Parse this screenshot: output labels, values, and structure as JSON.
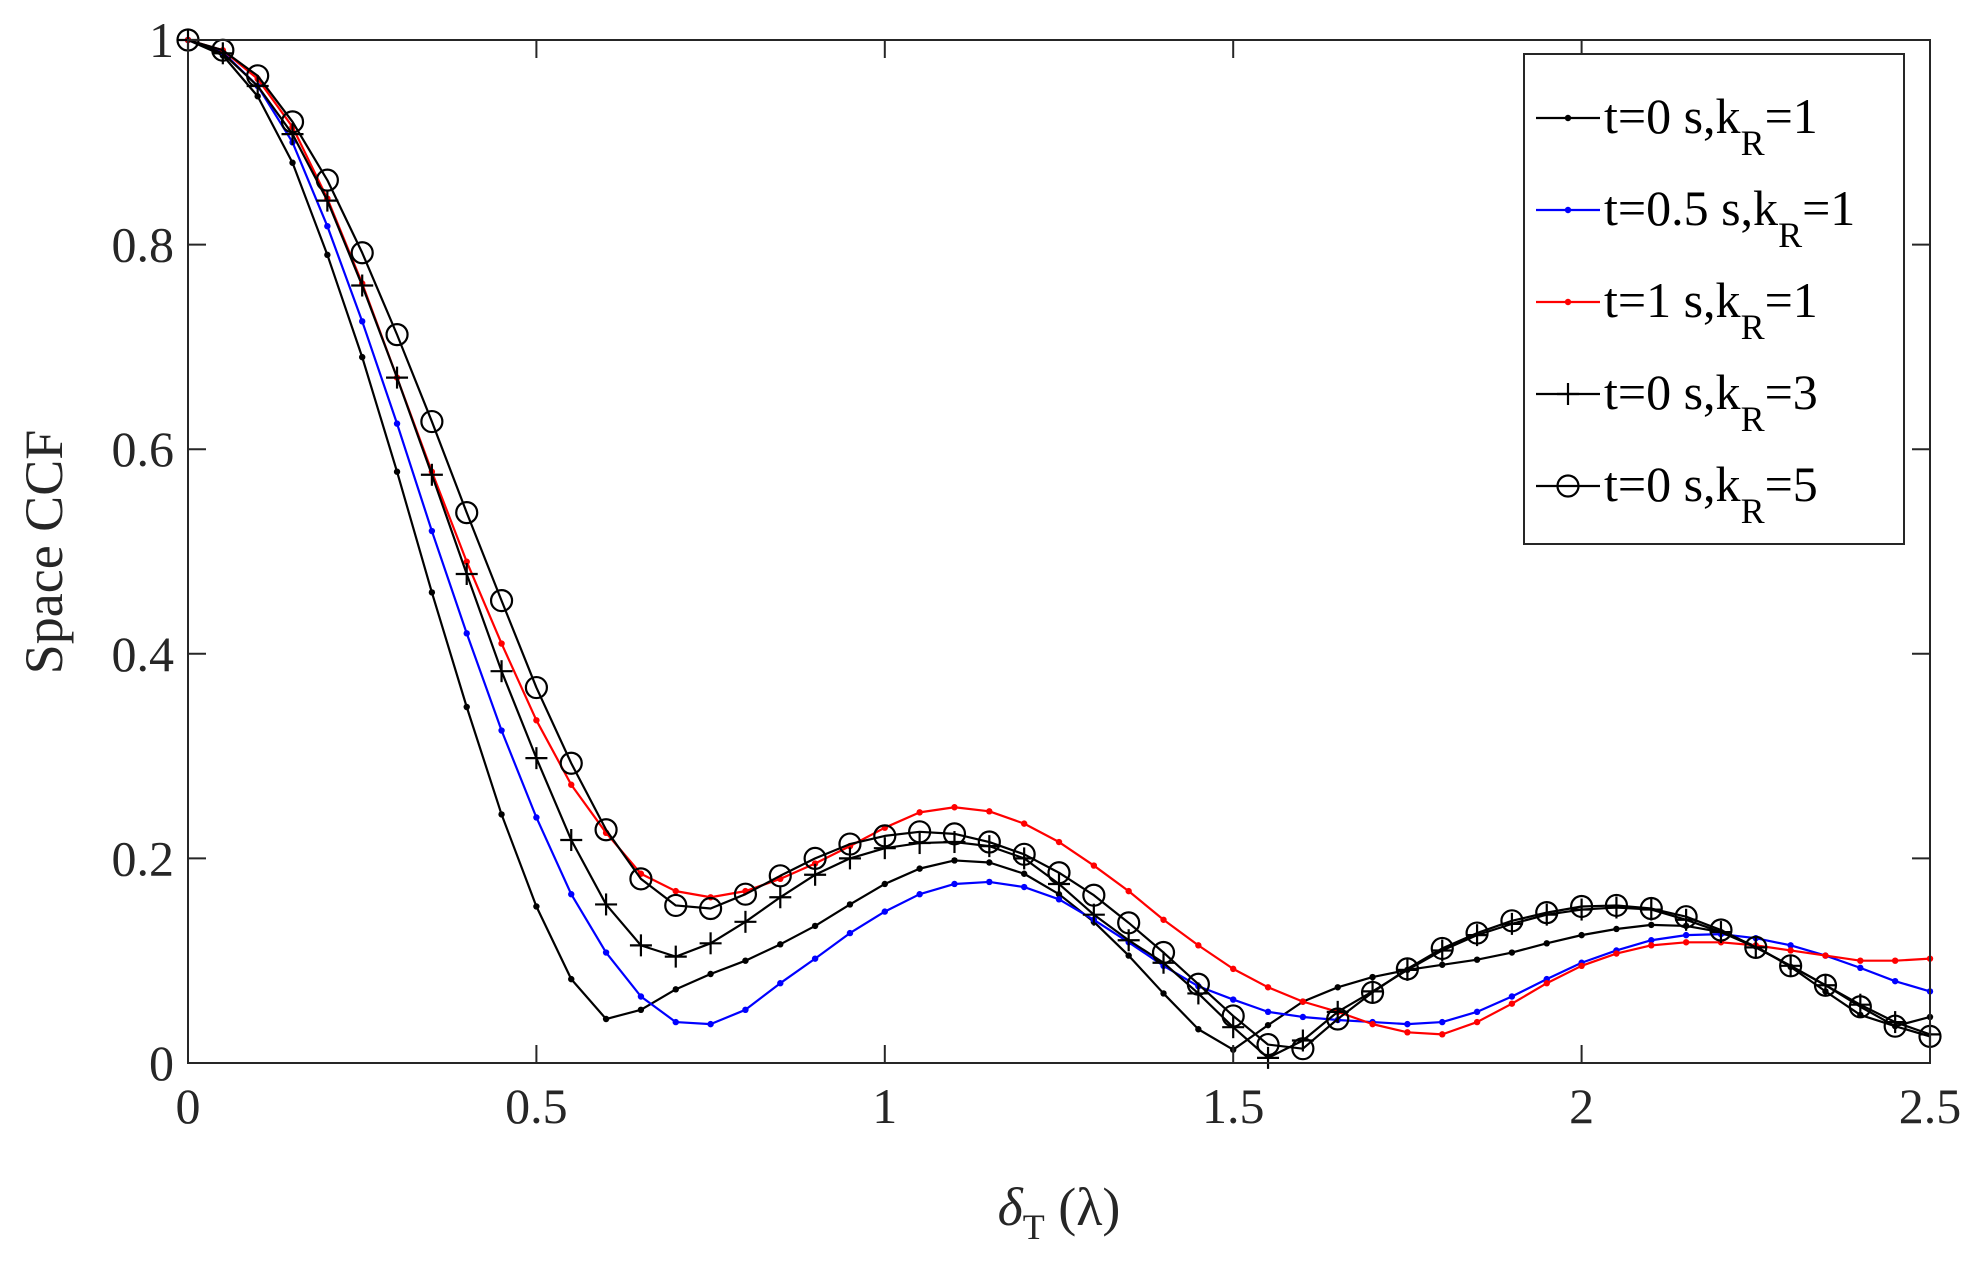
{
  "chart_data": {
    "type": "line",
    "title": "",
    "xlabel": {
      "main": "δ",
      "sub": "T",
      "unit": "(λ)"
    },
    "ylabel": "Space CCF",
    "xlim": [
      0,
      2.5
    ],
    "ylim": [
      0,
      1
    ],
    "xticks": [
      0,
      0.5,
      1,
      1.5,
      2,
      2.5
    ],
    "xtick_labels": [
      "0",
      "0.5",
      "1",
      "1.5",
      "2",
      "2.5"
    ],
    "yticks": [
      0,
      0.2,
      0.4,
      0.6,
      0.8,
      1
    ],
    "ytick_labels": [
      "0",
      "0.2",
      "0.4",
      "0.6",
      "0.8",
      "1"
    ],
    "grid": false,
    "legend_position": "top-right",
    "x": [
      0,
      0.05,
      0.1,
      0.15,
      0.2,
      0.25,
      0.3,
      0.35,
      0.4,
      0.45,
      0.5,
      0.55,
      0.6,
      0.65,
      0.7,
      0.75,
      0.8,
      0.85,
      0.9,
      0.95,
      1.0,
      1.05,
      1.1,
      1.15,
      1.2,
      1.25,
      1.3,
      1.35,
      1.4,
      1.45,
      1.5,
      1.55,
      1.6,
      1.65,
      1.7,
      1.75,
      1.8,
      1.85,
      1.9,
      1.95,
      2.0,
      2.05,
      2.1,
      2.15,
      2.2,
      2.25,
      2.3,
      2.35,
      2.4,
      2.45,
      2.5
    ],
    "series": [
      {
        "name": "t=0 s,k_R=1",
        "legend": {
          "main": "t=0 s,k",
          "sub": "R",
          "tail": "=1"
        },
        "color": "#000000",
        "marker": "dot",
        "values": [
          1.0,
          0.985,
          0.945,
          0.88,
          0.79,
          0.69,
          0.578,
          0.46,
          0.348,
          0.243,
          0.153,
          0.082,
          0.043,
          0.052,
          0.072,
          0.087,
          0.1,
          0.116,
          0.134,
          0.155,
          0.175,
          0.19,
          0.198,
          0.196,
          0.185,
          0.165,
          0.138,
          0.105,
          0.068,
          0.033,
          0.013,
          0.037,
          0.06,
          0.074,
          0.084,
          0.091,
          0.096,
          0.101,
          0.108,
          0.117,
          0.125,
          0.131,
          0.135,
          0.134,
          0.128,
          0.114,
          0.094,
          0.07,
          0.047,
          0.036,
          0.045
        ]
      },
      {
        "name": "t=0.5 s,k_R=1",
        "legend": {
          "main": "t=0.5 s,k",
          "sub": "R",
          "tail": "=1"
        },
        "color": "#0000ff",
        "marker": "dot",
        "values": [
          1.0,
          0.988,
          0.955,
          0.9,
          0.818,
          0.725,
          0.625,
          0.52,
          0.42,
          0.325,
          0.24,
          0.165,
          0.108,
          0.065,
          0.04,
          0.038,
          0.052,
          0.078,
          0.102,
          0.127,
          0.148,
          0.165,
          0.175,
          0.177,
          0.172,
          0.16,
          0.14,
          0.118,
          0.095,
          0.075,
          0.062,
          0.05,
          0.045,
          0.042,
          0.04,
          0.038,
          0.04,
          0.05,
          0.065,
          0.082,
          0.098,
          0.11,
          0.12,
          0.125,
          0.126,
          0.122,
          0.115,
          0.105,
          0.093,
          0.08,
          0.07
        ]
      },
      {
        "name": "t=1 s,k_R=1",
        "legend": {
          "main": "t=1 s,k",
          "sub": "R",
          "tail": "=1"
        },
        "color": "#ff0000",
        "marker": "dot",
        "values": [
          1.0,
          0.99,
          0.962,
          0.915,
          0.845,
          0.762,
          0.67,
          0.578,
          0.49,
          0.41,
          0.335,
          0.272,
          0.225,
          0.185,
          0.168,
          0.162,
          0.168,
          0.18,
          0.195,
          0.212,
          0.23,
          0.245,
          0.25,
          0.246,
          0.234,
          0.216,
          0.193,
          0.168,
          0.14,
          0.115,
          0.092,
          0.074,
          0.06,
          0.05,
          0.038,
          0.03,
          0.028,
          0.04,
          0.058,
          0.078,
          0.095,
          0.107,
          0.115,
          0.118,
          0.118,
          0.115,
          0.11,
          0.105,
          0.1,
          0.1,
          0.102
        ]
      },
      {
        "name": "t=0 s,k_R=3",
        "legend": {
          "main": "t=0 s,k",
          "sub": "R",
          "tail": "=3"
        },
        "color": "#000000",
        "marker": "plus",
        "values": [
          1.0,
          0.987,
          0.955,
          0.908,
          0.843,
          0.76,
          0.67,
          0.575,
          0.478,
          0.383,
          0.298,
          0.218,
          0.155,
          0.115,
          0.104,
          0.117,
          0.138,
          0.162,
          0.184,
          0.2,
          0.21,
          0.215,
          0.216,
          0.212,
          0.2,
          0.175,
          0.145,
          0.12,
          0.098,
          0.068,
          0.035,
          0.005,
          0.022,
          0.05,
          0.07,
          0.091,
          0.11,
          0.125,
          0.136,
          0.145,
          0.15,
          0.152,
          0.15,
          0.14,
          0.128,
          0.113,
          0.095,
          0.076,
          0.057,
          0.04,
          0.028
        ]
      },
      {
        "name": "t=0 s,k_R=5",
        "legend": {
          "main": "t=0 s,k",
          "sub": "R",
          "tail": "=5"
        },
        "color": "#000000",
        "marker": "circle",
        "values": [
          1.0,
          0.99,
          0.965,
          0.92,
          0.863,
          0.792,
          0.712,
          0.627,
          0.538,
          0.452,
          0.367,
          0.293,
          0.228,
          0.18,
          0.154,
          0.151,
          0.165,
          0.183,
          0.2,
          0.214,
          0.222,
          0.226,
          0.224,
          0.216,
          0.204,
          0.186,
          0.164,
          0.137,
          0.108,
          0.077,
          0.046,
          0.018,
          0.014,
          0.043,
          0.069,
          0.092,
          0.112,
          0.127,
          0.139,
          0.147,
          0.153,
          0.154,
          0.151,
          0.143,
          0.13,
          0.113,
          0.095,
          0.076,
          0.055,
          0.036,
          0.026
        ]
      }
    ]
  }
}
